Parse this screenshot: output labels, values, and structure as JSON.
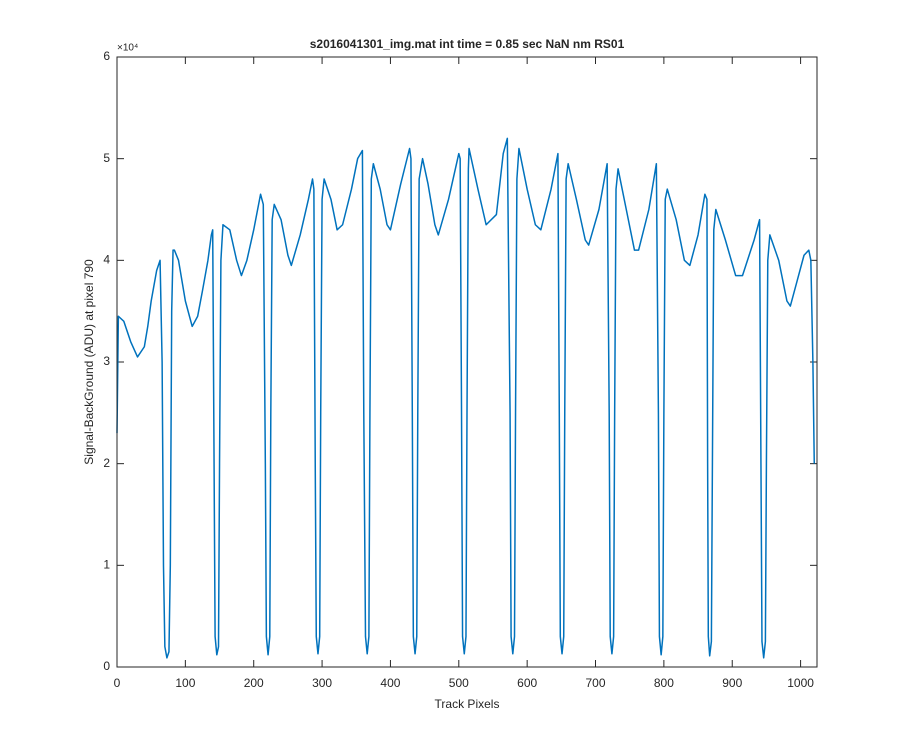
{
  "chart_data": {
    "type": "line",
    "title": "s2016041301_img.mat int time = 0.85 sec  NaN nm RS01",
    "x_label": "Track Pixels",
    "y_label": "Signal-BackGround (ADU) at pixel 790",
    "y_exponent_label": "×10⁴",
    "xlim": [
      0,
      1024
    ],
    "ylim": [
      0,
      60000
    ],
    "xticks": [
      0,
      100,
      200,
      300,
      400,
      500,
      600,
      700,
      800,
      900,
      1000
    ],
    "yticks": [
      {
        "value": 0,
        "label": "0"
      },
      {
        "value": 10000,
        "label": "1"
      },
      {
        "value": 20000,
        "label": "2"
      },
      {
        "value": 30000,
        "label": "3"
      },
      {
        "value": 40000,
        "label": "4"
      },
      {
        "value": 50000,
        "label": "5"
      },
      {
        "value": 60000,
        "label": "6"
      }
    ],
    "grid": false,
    "series": [
      {
        "color": "#0072bd",
        "x": [
          0,
          2,
          10,
          20,
          30,
          40,
          45,
          50,
          58,
          63,
          66,
          68,
          70,
          73,
          76,
          78,
          80,
          82,
          84,
          90,
          100,
          110,
          118,
          125,
          133,
          138,
          140,
          142,
          143.5,
          146,
          148.5,
          150,
          152,
          155,
          165,
          175,
          182,
          190,
          200,
          210,
          214,
          217,
          218.5,
          221,
          223.5,
          225,
          227,
          230,
          240,
          250,
          255,
          268,
          280,
          286,
          288,
          290,
          291.5,
          294,
          296.5,
          298,
          300,
          303,
          313,
          322,
          330,
          343,
          352,
          359,
          361,
          363.5,
          366,
          368.5,
          370,
          372,
          375,
          385,
          395,
          400,
          415,
          428,
          430,
          432,
          433.5,
          436,
          438.5,
          440,
          442,
          447,
          455,
          465,
          470,
          485,
          500,
          502,
          504,
          505.5,
          508,
          510.5,
          512,
          514,
          515,
          528,
          540,
          555,
          565,
          571,
          575,
          576.5,
          579,
          581.5,
          583,
          585,
          588,
          600,
          612,
          620,
          635,
          645,
          647,
          648.5,
          651,
          653.5,
          655,
          657,
          660,
          672,
          685,
          690,
          705,
          717,
          720,
          721.5,
          724,
          726.5,
          728,
          730,
          733,
          745,
          757,
          763,
          778,
          789,
          792,
          793.5,
          796,
          798.5,
          800,
          802,
          805,
          818,
          830,
          838,
          850,
          860,
          863,
          864,
          865,
          867,
          869.5,
          871,
          873,
          876,
          890,
          905,
          915,
          932,
          940,
          942,
          943.5,
          946,
          948.5,
          950,
          952,
          955,
          968,
          980,
          985,
          995,
          1005,
          1012,
          1015,
          1018,
          1020
        ],
        "values": [
          23000,
          34500,
          34000,
          32000,
          30500,
          31500,
          33500,
          36000,
          39000,
          40000,
          30000,
          10000,
          2000,
          900,
          1500,
          10000,
          35000,
          41000,
          41000,
          40000,
          36000,
          33500,
          34500,
          37000,
          40000,
          42500,
          43000,
          20000,
          3000,
          1200,
          2000,
          20000,
          40000,
          43500,
          43000,
          40000,
          38500,
          40000,
          43000,
          46500,
          45500,
          20000,
          3000,
          1200,
          3000,
          25000,
          44000,
          45500,
          44000,
          40500,
          39500,
          42500,
          46000,
          48000,
          47000,
          20000,
          3000,
          1300,
          3000,
          25000,
          46000,
          48000,
          46000,
          43000,
          43500,
          47000,
          50000,
          50800,
          25000,
          3000,
          1300,
          3000,
          25000,
          48000,
          49500,
          47000,
          43500,
          43000,
          47500,
          51000,
          50000,
          25000,
          3000,
          1300,
          3000,
          25000,
          48000,
          50000,
          47500,
          43500,
          42500,
          46000,
          50500,
          50000,
          25000,
          3000,
          1300,
          3000,
          25000,
          49000,
          51000,
          47000,
          43500,
          44500,
          50500,
          52000,
          25000,
          3000,
          1300,
          3000,
          25000,
          48000,
          51000,
          47000,
          43500,
          43000,
          47000,
          50500,
          25000,
          3000,
          1300,
          3000,
          25000,
          48000,
          49500,
          46000,
          42000,
          41500,
          45000,
          49500,
          25000,
          3000,
          1300,
          3000,
          25000,
          47000,
          49000,
          45000,
          41000,
          41000,
          45000,
          49500,
          25000,
          3000,
          1200,
          3000,
          25000,
          46000,
          47000,
          44000,
          40000,
          39500,
          42500,
          46500,
          46000,
          20000,
          3000,
          1100,
          2500,
          20000,
          43000,
          45000,
          42000,
          38500,
          38500,
          42000,
          44000,
          20000,
          2500,
          900,
          2500,
          20000,
          40000,
          42500,
          40000,
          36000,
          35500,
          38000,
          40500,
          41000,
          40000,
          30000,
          20000
        ]
      }
    ]
  }
}
